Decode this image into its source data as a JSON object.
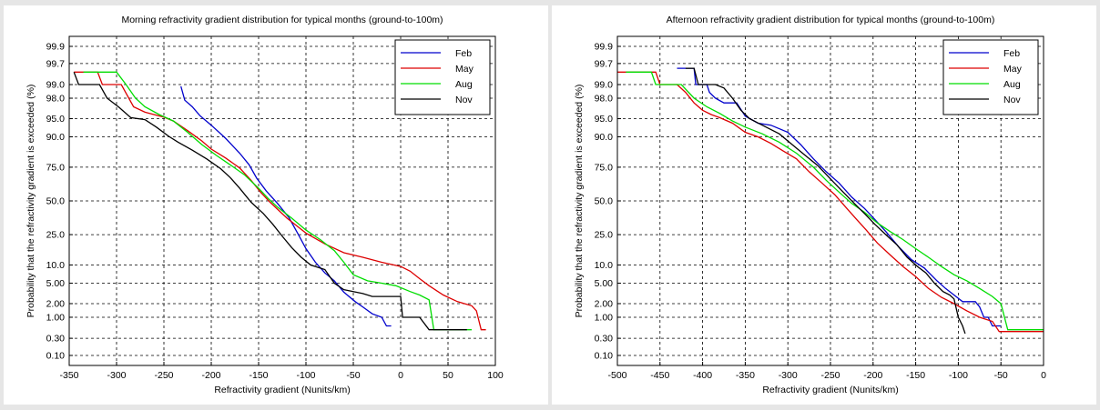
{
  "chart_data": [
    {
      "type": "line",
      "title": "Morning refractivity gradient distribution for typical months (ground-to-100m)",
      "xlabel": "Refractivity gradient (Nunits/km)",
      "ylabel": "Probability that the refractivity gradient is exceeded (%)",
      "xlim": [
        -350,
        100
      ],
      "x_ticks": [
        -350,
        -300,
        -250,
        -200,
        -150,
        -100,
        -50,
        0,
        50,
        100
      ],
      "y_scale": "probability",
      "y_ticks": [
        "99.9",
        "99.7",
        "99.0",
        "98.0",
        "95.0",
        "90.0",
        "75.0",
        "50.0",
        "25.0",
        "10.0",
        "5.00",
        "2.00",
        "1.00",
        "0.30",
        "0.10"
      ],
      "grid": true,
      "legend_position": "top-right",
      "series": [
        {
          "name": "Feb",
          "color": "#0000cc",
          "points": [
            [
              -232,
              98.9
            ],
            [
              -228,
              97.8
            ],
            [
              -220,
              97.0
            ],
            [
              -212,
              95.6
            ],
            [
              -200,
              93.5
            ],
            [
              -185,
              89.5
            ],
            [
              -170,
              83.0
            ],
            [
              -160,
              76.5
            ],
            [
              -152,
              67.5
            ],
            [
              -142,
              58.0
            ],
            [
              -130,
              48.0
            ],
            [
              -118,
              37.0
            ],
            [
              -108,
              25.0
            ],
            [
              -100,
              17.0
            ],
            [
              -90,
              11.0
            ],
            [
              -80,
              7.5
            ],
            [
              -70,
              5.5
            ],
            [
              -60,
              3.4
            ],
            [
              -48,
              2.2
            ],
            [
              -40,
              1.7
            ],
            [
              -30,
              1.2
            ],
            [
              -20,
              1.0
            ],
            [
              -15,
              0.62
            ],
            [
              -10,
              0.62
            ]
          ]
        },
        {
          "name": "May",
          "color": "#dd0000",
          "points": [
            [
              -345,
              99.5
            ],
            [
              -320,
              99.5
            ],
            [
              -315,
              99.0
            ],
            [
              -295,
              99.0
            ],
            [
              -282,
              97.0
            ],
            [
              -270,
              96.2
            ],
            [
              -250,
              95.3
            ],
            [
              -240,
              94.5
            ],
            [
              -225,
              92.0
            ],
            [
              -210,
              88.5
            ],
            [
              -200,
              85.0
            ],
            [
              -185,
              80.5
            ],
            [
              -170,
              74.5
            ],
            [
              -158,
              66.0
            ],
            [
              -148,
              57.0
            ],
            [
              -138,
              49.0
            ],
            [
              -120,
              36.5
            ],
            [
              -100,
              26.0
            ],
            [
              -80,
              19.5
            ],
            [
              -60,
              15.0
            ],
            [
              -40,
              13.0
            ],
            [
              -20,
              11.0
            ],
            [
              0,
              9.5
            ],
            [
              10,
              8.0
            ],
            [
              20,
              6.0
            ],
            [
              30,
              4.5
            ],
            [
              45,
              3.0
            ],
            [
              60,
              2.2
            ],
            [
              75,
              1.8
            ],
            [
              80,
              1.4
            ],
            [
              85,
              0.5
            ],
            [
              90,
              0.5
            ]
          ]
        },
        {
          "name": "Aug",
          "color": "#00dd00",
          "points": [
            [
              -335,
              99.5
            ],
            [
              -300,
              99.5
            ],
            [
              -290,
              99.0
            ],
            [
              -280,
              98.0
            ],
            [
              -270,
              97.0
            ],
            [
              -255,
              95.8
            ],
            [
              -240,
              94.5
            ],
            [
              -225,
              91.5
            ],
            [
              -210,
              87.0
            ],
            [
              -195,
              82.0
            ],
            [
              -180,
              76.5
            ],
            [
              -165,
              70.0
            ],
            [
              -150,
              60.0
            ],
            [
              -140,
              52.0
            ],
            [
              -130,
              45.0
            ],
            [
              -115,
              36.5
            ],
            [
              -100,
              28.0
            ],
            [
              -85,
              22.0
            ],
            [
              -70,
              16.0
            ],
            [
              -60,
              11.0
            ],
            [
              -50,
              7.0
            ],
            [
              -35,
              5.5
            ],
            [
              -20,
              5.0
            ],
            [
              -5,
              4.5
            ],
            [
              10,
              3.5
            ],
            [
              20,
              3.0
            ],
            [
              30,
              2.4
            ],
            [
              35,
              0.5
            ],
            [
              75,
              0.5
            ]
          ]
        },
        {
          "name": "Nov",
          "color": "#000000",
          "points": [
            [
              -345,
              99.5
            ],
            [
              -340,
              99.0
            ],
            [
              -318,
              99.0
            ],
            [
              -310,
              98.0
            ],
            [
              -298,
              97.0
            ],
            [
              -285,
              95.2
            ],
            [
              -270,
              94.8
            ],
            [
              -258,
              93.0
            ],
            [
              -245,
              90.2
            ],
            [
              -235,
              88.0
            ],
            [
              -220,
              84.5
            ],
            [
              -205,
              80.0
            ],
            [
              -190,
              74.0
            ],
            [
              -180,
              68.0
            ],
            [
              -170,
              60.0
            ],
            [
              -158,
              49.0
            ],
            [
              -145,
              40.0
            ],
            [
              -135,
              32.0
            ],
            [
              -125,
              24.0
            ],
            [
              -115,
              17.5
            ],
            [
              -105,
              13.0
            ],
            [
              -95,
              10.0
            ],
            [
              -80,
              8.5
            ],
            [
              -70,
              5.0
            ],
            [
              -60,
              3.8
            ],
            [
              -50,
              3.5
            ],
            [
              -40,
              3.2
            ],
            [
              -30,
              2.8
            ],
            [
              0,
              2.8
            ],
            [
              2,
              1.0
            ],
            [
              20,
              1.0
            ],
            [
              30,
              0.5
            ],
            [
              70,
              0.5
            ]
          ]
        }
      ]
    },
    {
      "type": "line",
      "title": "Afternoon refractivity gradient distribution for typical months (ground-to-100m)",
      "xlabel": "Refractivity gradient (Nunits/km)",
      "ylabel": "Probability that the refractivity gradient is exceeded (%)",
      "xlim": [
        -500,
        0
      ],
      "x_ticks": [
        -500,
        -450,
        -400,
        -350,
        -300,
        -250,
        -200,
        -150,
        -100,
        -50,
        0
      ],
      "y_scale": "probability",
      "y_ticks": [
        "99.9",
        "99.7",
        "99.0",
        "98.0",
        "95.0",
        "90.0",
        "75.0",
        "50.0",
        "25.0",
        "10.0",
        "5.00",
        "2.00",
        "1.00",
        "0.30",
        "0.10"
      ],
      "grid": true,
      "legend_position": "top-right",
      "series": [
        {
          "name": "Feb",
          "color": "#0000cc",
          "points": [
            [
              -430,
              99.6
            ],
            [
              -410,
              99.6
            ],
            [
              -408,
              99.0
            ],
            [
              -395,
              99.0
            ],
            [
              -392,
              98.5
            ],
            [
              -385,
              98.0
            ],
            [
              -375,
              97.5
            ],
            [
              -360,
              97.5
            ],
            [
              -350,
              95.5
            ],
            [
              -335,
              94.0
            ],
            [
              -320,
              93.5
            ],
            [
              -300,
              91.5
            ],
            [
              -285,
              87.0
            ],
            [
              -270,
              80.0
            ],
            [
              -255,
              72.0
            ],
            [
              -240,
              64.0
            ],
            [
              -225,
              53.0
            ],
            [
              -210,
              44.0
            ],
            [
              -200,
              37.0
            ],
            [
              -185,
              27.0
            ],
            [
              -170,
              18.0
            ],
            [
              -155,
              12.0
            ],
            [
              -140,
              9.0
            ],
            [
              -125,
              5.5
            ],
            [
              -115,
              4.0
            ],
            [
              -105,
              3.0
            ],
            [
              -95,
              2.2
            ],
            [
              -80,
              2.2
            ],
            [
              -75,
              1.7
            ],
            [
              -70,
              1.0
            ],
            [
              -65,
              1.0
            ],
            [
              -60,
              0.62
            ],
            [
              -50,
              0.62
            ]
          ]
        },
        {
          "name": "May",
          "color": "#dd0000",
          "points": [
            [
              -500,
              99.5
            ],
            [
              -455,
              99.5
            ],
            [
              -450,
              99.0
            ],
            [
              -430,
              99.0
            ],
            [
              -420,
              98.5
            ],
            [
              -410,
              97.5
            ],
            [
              -400,
              96.5
            ],
            [
              -390,
              95.8
            ],
            [
              -380,
              95.2
            ],
            [
              -365,
              94.0
            ],
            [
              -350,
              91.5
            ],
            [
              -335,
              90.0
            ],
            [
              -320,
              87.5
            ],
            [
              -305,
              84.0
            ],
            [
              -290,
              80.0
            ],
            [
              -275,
              72.0
            ],
            [
              -260,
              64.0
            ],
            [
              -245,
              55.0
            ],
            [
              -232,
              45.0
            ],
            [
              -220,
              36.0
            ],
            [
              -208,
              28.0
            ],
            [
              -195,
              20.0
            ],
            [
              -180,
              14.0
            ],
            [
              -165,
              9.5
            ],
            [
              -150,
              6.5
            ],
            [
              -135,
              4.0
            ],
            [
              -120,
              2.7
            ],
            [
              -105,
              2.0
            ],
            [
              -90,
              1.4
            ],
            [
              -75,
              1.0
            ],
            [
              -60,
              0.8
            ],
            [
              -52,
              0.45
            ],
            [
              0,
              0.45
            ]
          ]
        },
        {
          "name": "Aug",
          "color": "#00dd00",
          "points": [
            [
              -490,
              99.5
            ],
            [
              -460,
              99.5
            ],
            [
              -455,
              99.0
            ],
            [
              -425,
              99.0
            ],
            [
              -410,
              98.0
            ],
            [
              -395,
              97.0
            ],
            [
              -380,
              96.0
            ],
            [
              -365,
              94.5
            ],
            [
              -350,
              93.0
            ],
            [
              -330,
              91.0
            ],
            [
              -310,
              88.0
            ],
            [
              -290,
              83.0
            ],
            [
              -270,
              75.0
            ],
            [
              -255,
              66.0
            ],
            [
              -240,
              57.0
            ],
            [
              -225,
              48.0
            ],
            [
              -210,
              41.0
            ],
            [
              -195,
              33.0
            ],
            [
              -180,
              27.0
            ],
            [
              -165,
              22.0
            ],
            [
              -150,
              17.0
            ],
            [
              -135,
              13.0
            ],
            [
              -120,
              9.5
            ],
            [
              -105,
              7.0
            ],
            [
              -90,
              5.5
            ],
            [
              -75,
              4.0
            ],
            [
              -60,
              2.8
            ],
            [
              -50,
              2.0
            ],
            [
              -42,
              0.5
            ],
            [
              -30,
              0.5
            ],
            [
              0,
              0.5
            ]
          ]
        },
        {
          "name": "Nov",
          "color": "#000000",
          "points": [
            [
              -420,
              99.6
            ],
            [
              -410,
              99.6
            ],
            [
              -405,
              99.0
            ],
            [
              -385,
              99.0
            ],
            [
              -375,
              98.8
            ],
            [
              -365,
              98.0
            ],
            [
              -355,
              96.5
            ],
            [
              -345,
              95.0
            ],
            [
              -330,
              93.5
            ],
            [
              -310,
              91.0
            ],
            [
              -295,
              87.0
            ],
            [
              -280,
              82.0
            ],
            [
              -265,
              76.0
            ],
            [
              -250,
              67.0
            ],
            [
              -235,
              57.0
            ],
            [
              -222,
              48.0
            ],
            [
              -210,
              40.0
            ],
            [
              -198,
              32.0
            ],
            [
              -185,
              25.0
            ],
            [
              -172,
              19.0
            ],
            [
              -160,
              13.0
            ],
            [
              -148,
              9.5
            ],
            [
              -138,
              7.5
            ],
            [
              -128,
              5.0
            ],
            [
              -118,
              3.5
            ],
            [
              -110,
              3.0
            ],
            [
              -105,
              2.5
            ],
            [
              -100,
              1.0
            ],
            [
              -95,
              0.62
            ],
            [
              -92,
              0.4
            ]
          ]
        }
      ]
    }
  ]
}
